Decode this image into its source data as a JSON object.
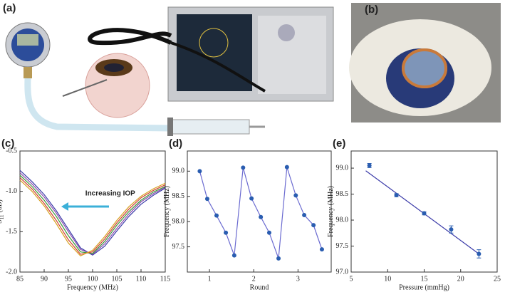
{
  "panels": {
    "a": "(a)",
    "b": "(b)"
  },
  "chart_data": [
    {
      "type": "line",
      "title": "(c)",
      "xlabel": "Frequency (MHz)",
      "ylabel": "S",
      "ylabel_sub": "11",
      "ylabel_unit": "(dB)",
      "annotation": "Increasing IOP",
      "annotation_color": "#3bb0d8",
      "x": [
        85,
        87.5,
        90,
        92.5,
        95,
        97.5,
        100,
        102.5,
        105,
        107.5,
        110,
        112.5,
        115
      ],
      "xlim": [
        85,
        115
      ],
      "xticks": [
        85,
        90,
        95,
        100,
        105,
        110,
        115
      ],
      "ylim": [
        -2.0,
        -0.5
      ],
      "yticks": [
        -0.5,
        {
          "value": -1,
          "label": "-1.0"
        },
        -1.5,
        {
          "value": -2,
          "label": "-2.0"
        }
      ],
      "series": [
        {
          "color": "#3a3aa8",
          "values": [
            -0.74,
            -0.88,
            -1.04,
            -1.24,
            -1.47,
            -1.7,
            -1.79,
            -1.68,
            -1.49,
            -1.31,
            -1.16,
            -1.05,
            -0.96
          ]
        },
        {
          "color": "#8a4fb0",
          "values": [
            -0.77,
            -0.91,
            -1.07,
            -1.27,
            -1.5,
            -1.72,
            -1.78,
            -1.65,
            -1.46,
            -1.28,
            -1.13,
            -1.03,
            -0.95
          ]
        },
        {
          "color": "#3a9a3a",
          "values": [
            -0.8,
            -0.94,
            -1.11,
            -1.31,
            -1.55,
            -1.75,
            -1.77,
            -1.62,
            -1.42,
            -1.25,
            -1.11,
            -1.01,
            -0.94
          ]
        },
        {
          "color": "#d04030",
          "values": [
            -0.83,
            -0.97,
            -1.15,
            -1.36,
            -1.6,
            -1.78,
            -1.75,
            -1.59,
            -1.39,
            -1.22,
            -1.08,
            -0.99,
            -0.92
          ]
        },
        {
          "color": "#d8a020",
          "values": [
            -0.86,
            -1.0,
            -1.18,
            -1.4,
            -1.64,
            -1.8,
            -1.73,
            -1.56,
            -1.36,
            -1.19,
            -1.06,
            -0.97,
            -0.9
          ]
        }
      ]
    },
    {
      "type": "line",
      "title": "(d)",
      "xlabel": "Round",
      "ylabel": "Frequency (MHz)",
      "markers": true,
      "marker_color": "#2a5db0",
      "x": [
        0.78,
        0.95,
        1.16,
        1.37,
        1.56,
        1.76,
        1.95,
        2.16,
        2.35,
        2.56,
        2.75,
        2.95,
        3.14,
        3.35,
        3.54
      ],
      "xlim": [
        0.5,
        3.75
      ],
      "xticks": [
        1,
        2,
        3
      ],
      "ylim": [
        97.0,
        99.4
      ],
      "yticks": [
        97.5,
        {
          "value": 98,
          "label": "98.0"
        },
        98.5,
        {
          "value": 99,
          "label": "99.0"
        }
      ],
      "series": [
        {
          "color": "#6a6ad0",
          "values": [
            99.0,
            98.45,
            98.12,
            97.78,
            97.33,
            99.07,
            98.46,
            98.09,
            97.78,
            97.27,
            99.08,
            98.52,
            98.13,
            97.93,
            97.45
          ]
        }
      ]
    },
    {
      "type": "scatter",
      "title": "(e)",
      "xlabel": "Pressure (mmHg)",
      "ylabel": "Frequency (MHz)",
      "color": "#2a5db0",
      "x": [
        7.5,
        11.2,
        15,
        18.7,
        22.5
      ],
      "values": [
        99.05,
        98.48,
        98.13,
        97.82,
        97.35
      ],
      "errors": [
        0.04,
        0.03,
        0.03,
        0.07,
        0.08
      ],
      "fit": {
        "x": [
          7,
          22.5
        ],
        "values": [
          98.95,
          97.35
        ],
        "color": "#3a3aa8"
      },
      "xlim": [
        5,
        25
      ],
      "xticks": [
        5,
        10,
        15,
        20,
        25
      ],
      "ylim": [
        97.0,
        99.33
      ],
      "yticks": [
        {
          "value": 97,
          "label": "97.0"
        },
        97.5,
        {
          "value": 98,
          "label": "98.0"
        },
        98.5,
        {
          "value": 99,
          "label": "99.0"
        }
      ]
    }
  ]
}
